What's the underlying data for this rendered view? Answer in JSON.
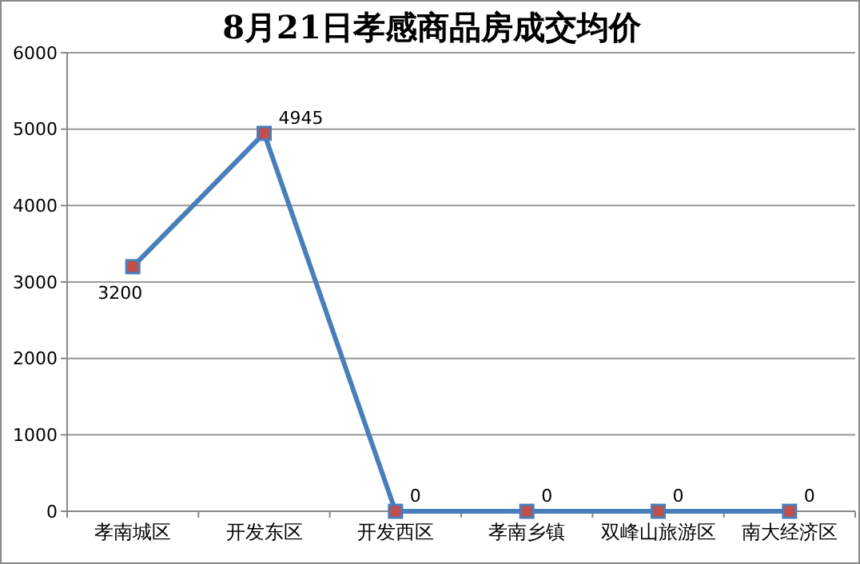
{
  "chart_data": {
    "type": "line",
    "title": "8月21日孝感商品房成交均价",
    "categories": [
      "孝南城区",
      "开发东区",
      "开发西区",
      "孝南乡镇",
      "双峰山旅游区",
      "南大经济区"
    ],
    "series": [
      {
        "color": "#4a7ebb",
        "values": [
          3200,
          4945,
          0,
          0,
          0,
          0
        ]
      }
    ],
    "ylim": [
      0,
      6000
    ],
    "yticks": [
      0,
      1000,
      2000,
      3000,
      4000,
      5000,
      6000
    ],
    "grid": "y",
    "marker": "square",
    "line_style": "solid",
    "data_labels": true
  }
}
